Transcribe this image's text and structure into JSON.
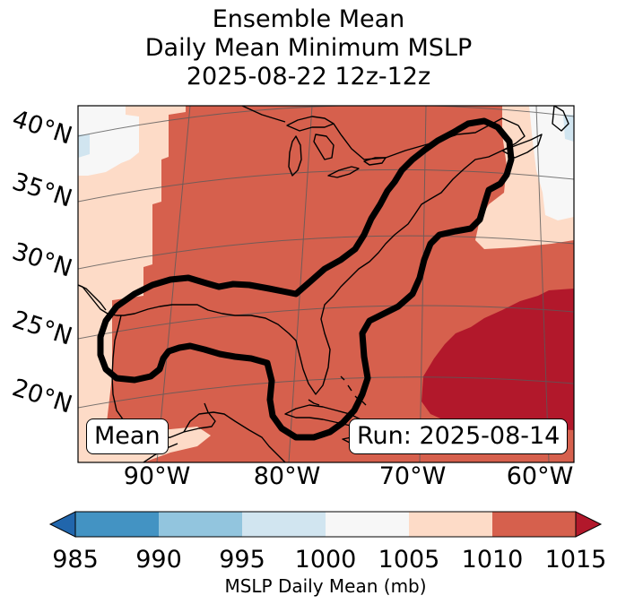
{
  "title": {
    "line1": "Ensemble Mean",
    "line2": "Daily Mean Minimum MSLP",
    "line3": "2025-08-22 12z-12z"
  },
  "map": {
    "region": "Eastern United States, Gulf of Mexico, Western Atlantic",
    "lat_labels": [
      "40°N",
      "35°N",
      "30°N",
      "25°N",
      "20°N"
    ],
    "lon_labels": [
      "90°W",
      "80°W",
      "70°W",
      "60°W"
    ],
    "mean_box": "Mean",
    "run_box": "Run: 2025-08-14",
    "fill_colors": {
      "b990_995": "#92c5de",
      "b995_1000": "#d1e5f0",
      "b1000_1005": "#f7f7f7",
      "b1005_1010": "#fddbc7",
      "b1010_1015": "#d6604d",
      "above_1015": "#b2182b"
    },
    "contour_color": "#000000"
  },
  "colorbar": {
    "label": "MSLP Daily Mean (mb)",
    "ticks": [
      "985",
      "990",
      "995",
      "1000",
      "1005",
      "1010",
      "1015"
    ],
    "colors": [
      "#2166ac",
      "#4393c3",
      "#92c5de",
      "#d1e5f0",
      "#f7f7f7",
      "#fddbc7",
      "#d6604d",
      "#b2182b"
    ]
  }
}
